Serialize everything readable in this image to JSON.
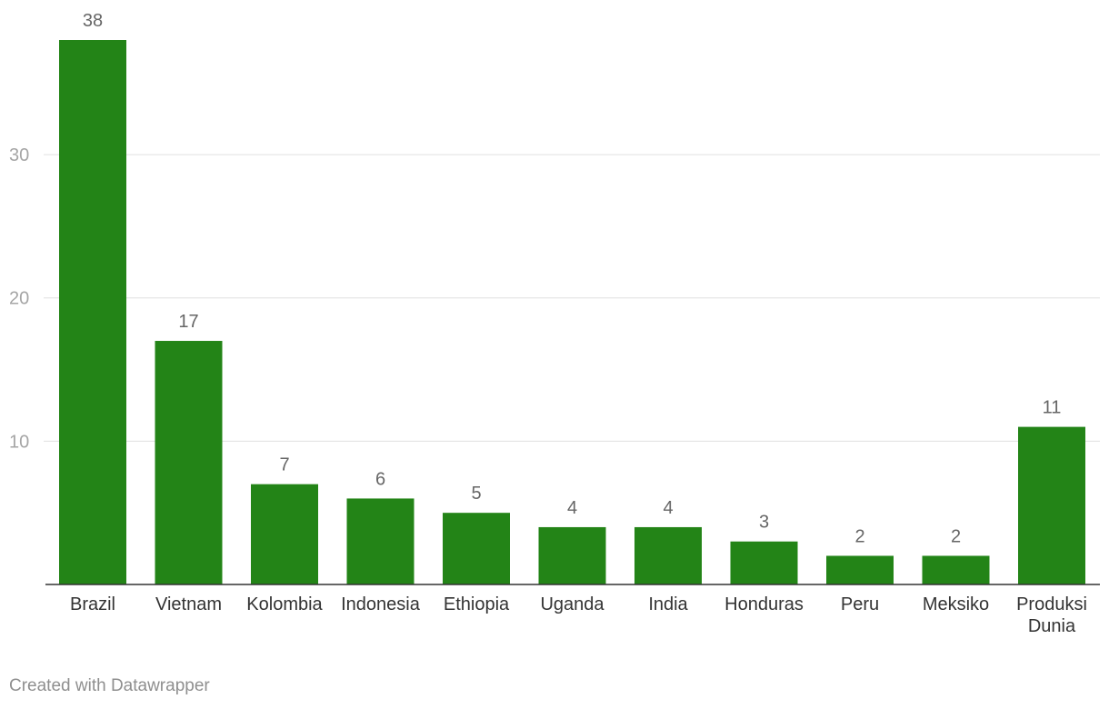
{
  "chart_data": {
    "type": "bar",
    "categories": [
      [
        "Brazil"
      ],
      [
        "Vietnam"
      ],
      [
        "Kolombia"
      ],
      [
        "Indonesia"
      ],
      [
        "Ethiopia"
      ],
      [
        "Uganda"
      ],
      [
        "India"
      ],
      [
        "Honduras"
      ],
      [
        "Peru"
      ],
      [
        "Meksiko"
      ],
      [
        "Produksi",
        "Dunia"
      ]
    ],
    "values": [
      38,
      17,
      7,
      6,
      5,
      4,
      4,
      3,
      2,
      2,
      11
    ],
    "ylim": [
      0,
      38
    ],
    "yticks": [
      10,
      20,
      30
    ],
    "grid": true,
    "bar_color": "#238417",
    "title": "",
    "xlabel": "",
    "ylabel": ""
  },
  "footer": {
    "credit": "Created with Datawrapper"
  }
}
